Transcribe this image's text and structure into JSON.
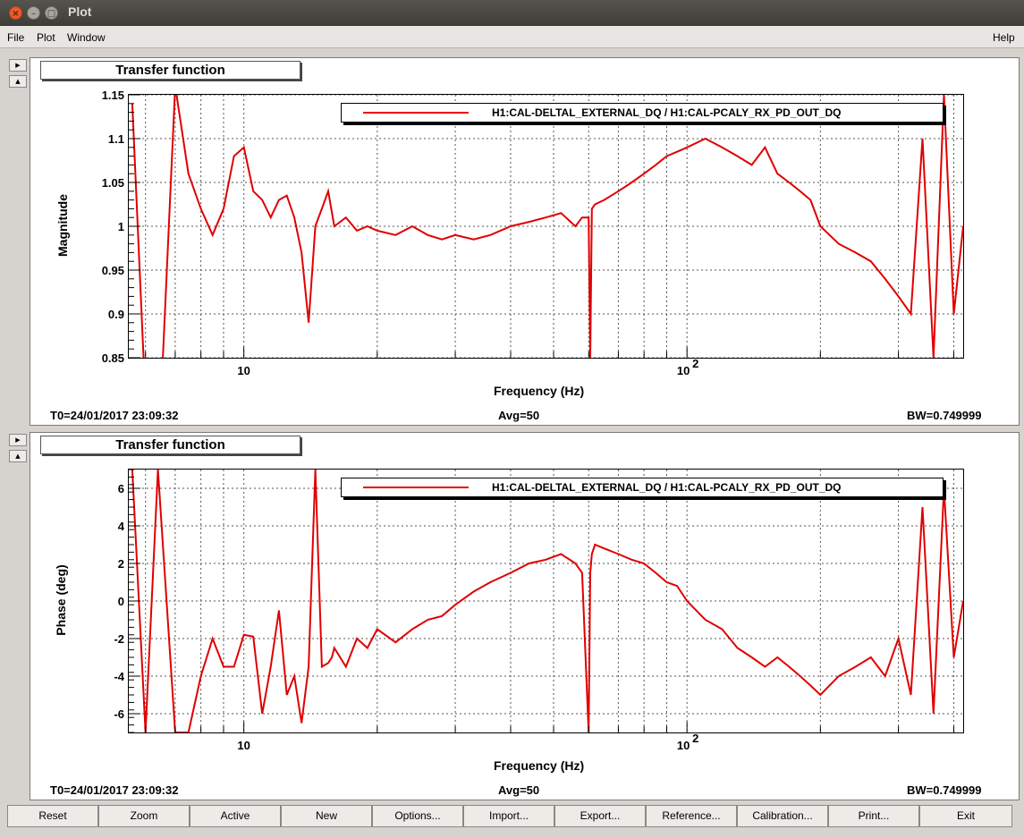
{
  "window": {
    "title": "Plot"
  },
  "menubar": {
    "file": "File",
    "plot": "Plot",
    "window": "Window",
    "help": "Help"
  },
  "panels": [
    {
      "label": "Transfer function",
      "ylabel": "Magnitude",
      "xlabel": "Frequency (Hz)",
      "legend": "H1:CAL-DELTAL_EXTERNAL_DQ / H1:CAL-PCALY_RX_PD_OUT_DQ",
      "t0": "T0=24/01/2017 23:09:32",
      "avg": "Avg=50",
      "bw": "BW=0.749999",
      "xtick_10": "10",
      "xtick_100_base": "10",
      "xtick_100_exp": "2",
      "yticks": [
        "0.85",
        "0.9",
        "0.95",
        "1",
        "1.05",
        "1.1",
        "1.15"
      ]
    },
    {
      "label": "Transfer function",
      "ylabel": "Phase (deg)",
      "xlabel": "Frequency (Hz)",
      "legend": "H1:CAL-DELTAL_EXTERNAL_DQ / H1:CAL-PCALY_RX_PD_OUT_DQ",
      "t0": "T0=24/01/2017 23:09:32",
      "avg": "Avg=50",
      "bw": "BW=0.749999",
      "xtick_10": "10",
      "xtick_100_base": "10",
      "xtick_100_exp": "2",
      "yticks": [
        "-6",
        "-4",
        "-2",
        "0",
        "2",
        "4",
        "6"
      ]
    }
  ],
  "buttons": [
    "Reset",
    "Zoom",
    "Active",
    "New",
    "Options...",
    "Import...",
    "Export...",
    "Reference...",
    "Calibration...",
    "Print...",
    "Exit"
  ],
  "colors": {
    "trace": "#e00000"
  },
  "chart_data": [
    {
      "type": "line",
      "xscale": "log",
      "xlim": [
        5.5,
        420
      ],
      "ylim": [
        0.85,
        1.15
      ],
      "x": [
        5.6,
        6,
        6.5,
        7,
        7.5,
        8,
        8.5,
        9,
        9.5,
        10,
        10.5,
        11,
        11.5,
        12,
        12.5,
        13,
        13.5,
        14,
        14.5,
        15,
        15.5,
        16,
        17,
        18,
        19,
        20,
        22,
        24,
        26,
        28,
        30,
        33,
        36,
        40,
        44,
        48,
        52,
        56,
        58,
        60,
        60.5,
        61,
        62,
        65,
        70,
        75,
        80,
        85,
        90,
        95,
        100,
        110,
        120,
        130,
        140,
        150,
        160,
        170,
        180,
        190,
        200,
        220,
        240,
        260,
        280,
        300,
        320,
        340,
        360,
        380,
        400,
        420
      ],
      "values": [
        1.14,
        0.8,
        0.8,
        1.16,
        1.06,
        1.02,
        0.99,
        1.02,
        1.08,
        1.09,
        1.04,
        1.03,
        1.01,
        1.03,
        1.035,
        1.01,
        0.97,
        0.89,
        1.0,
        1.02,
        1.04,
        1.0,
        1.01,
        0.995,
        1.0,
        0.995,
        0.99,
        1.0,
        0.99,
        0.985,
        0.99,
        0.985,
        0.99,
        1.0,
        1.005,
        1.01,
        1.015,
        1.0,
        1.01,
        1.01,
        0.85,
        1.02,
        1.025,
        1.03,
        1.04,
        1.05,
        1.06,
        1.07,
        1.08,
        1.085,
        1.09,
        1.1,
        1.09,
        1.08,
        1.07,
        1.09,
        1.06,
        1.05,
        1.04,
        1.03,
        1.0,
        0.98,
        0.97,
        0.96,
        0.94,
        0.92,
        0.9,
        1.1,
        0.85,
        1.15,
        0.9,
        1.0
      ]
    },
    {
      "type": "line",
      "xscale": "log",
      "xlim": [
        5.5,
        420
      ],
      "ylim": [
        -7,
        7
      ],
      "x": [
        5.6,
        6,
        6.4,
        7,
        7.5,
        8,
        8.5,
        9,
        9.5,
        10,
        10.5,
        11,
        11.5,
        12,
        12.5,
        13,
        13.5,
        14,
        14.5,
        15,
        15.5,
        15.8,
        16,
        17,
        18,
        19,
        20,
        22,
        24,
        26,
        28,
        30,
        33,
        36,
        40,
        44,
        48,
        52,
        56,
        58,
        60,
        60.5,
        61,
        62,
        65,
        70,
        75,
        80,
        85,
        90,
        95,
        100,
        110,
        120,
        130,
        140,
        150,
        160,
        170,
        180,
        190,
        200,
        220,
        240,
        260,
        280,
        300,
        320,
        340,
        360,
        380,
        400,
        420
      ],
      "values": [
        7,
        -7,
        7,
        -7,
        -7,
        -4,
        -2,
        -3.5,
        -3.5,
        -1.8,
        -1.9,
        -6,
        -3.5,
        -0.5,
        -5,
        -4,
        -6.5,
        -3.5,
        7,
        -3.5,
        -3.3,
        -3.0,
        -2.5,
        -3.5,
        -2.0,
        -2.5,
        -1.5,
        -2.2,
        -1.5,
        -1.0,
        -0.8,
        -0.2,
        0.5,
        1.0,
        1.5,
        2.0,
        2.2,
        2.5,
        2.0,
        1.5,
        -7,
        1.5,
        2.5,
        3.0,
        2.8,
        2.5,
        2.2,
        2.0,
        1.5,
        1.0,
        0.8,
        0.0,
        -1.0,
        -1.5,
        -2.5,
        -3.0,
        -3.5,
        -3.0,
        -3.5,
        -4.0,
        -4.5,
        -5.0,
        -4.0,
        -3.5,
        -3.0,
        -4.0,
        -2.0,
        -5.0,
        5.0,
        -6.0,
        6.0,
        -3.0,
        0.0
      ]
    }
  ]
}
